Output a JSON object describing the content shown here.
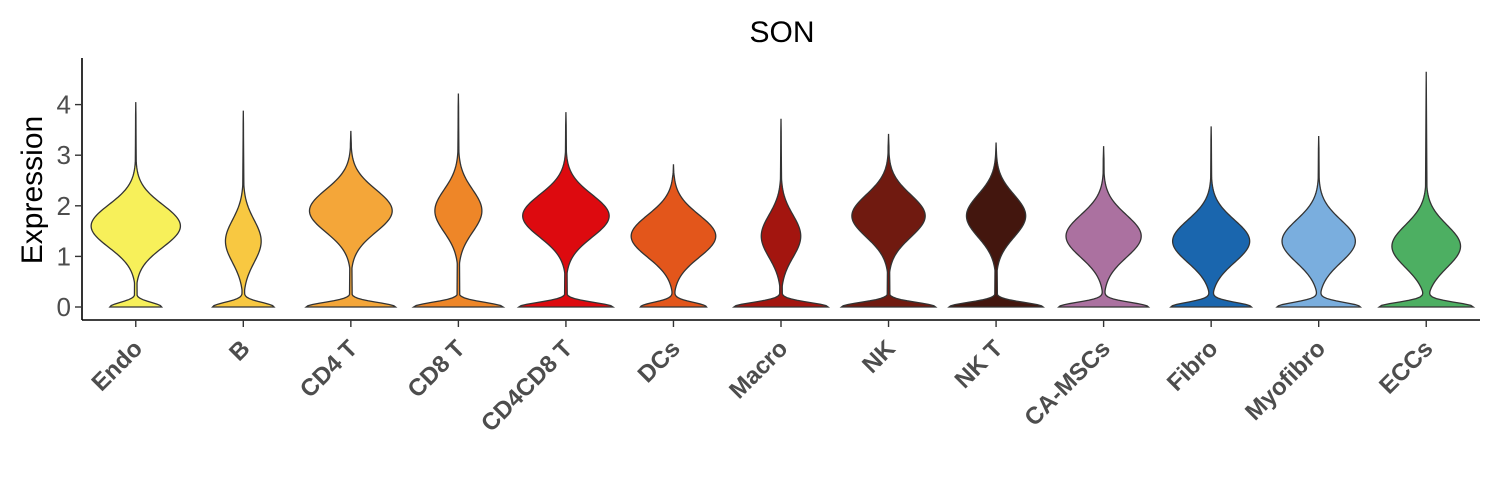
{
  "chart_data": {
    "type": "violin",
    "title": "SON",
    "ylabel": "Expression",
    "xlabel": "",
    "ylim": [
      -0.25,
      4.85
    ],
    "yticks": [
      "0",
      "1",
      "2",
      "3",
      "4"
    ],
    "grid": false,
    "legend": "none",
    "categories": [
      "Endo",
      "B",
      "CD4 T",
      "CD8 T",
      "CD4CD8 T",
      "DCs",
      "Macro",
      "NK",
      "NK T",
      "CA-MSCs",
      "Fibro",
      "Myofibro",
      "ECCs"
    ],
    "colors": [
      "#F7F05A",
      "#F8C841",
      "#F4A639",
      "#EE8628",
      "#DD0A0F",
      "#E3561B",
      "#A3150F",
      "#701A10",
      "#43160E",
      "#AB71A0",
      "#1A66AE",
      "#7AAEDE",
      "#4DAF62"
    ],
    "max_values": [
      4.05,
      3.88,
      3.48,
      4.22,
      3.85,
      2.82,
      3.72,
      3.42,
      3.25,
      3.18,
      3.57,
      3.38,
      4.65
    ],
    "modes": [
      {
        "upper": 1.6,
        "upper_width": 0.95,
        "lower_width": 0.55
      },
      {
        "upper": 1.3,
        "upper_width": 0.38,
        "lower_width": 0.65
      },
      {
        "upper": 1.9,
        "upper_width": 0.88,
        "lower_width": 0.95
      },
      {
        "upper": 1.9,
        "upper_width": 0.5,
        "lower_width": 0.95
      },
      {
        "upper": 1.8,
        "upper_width": 0.92,
        "lower_width": 1.0
      },
      {
        "upper": 1.4,
        "upper_width": 0.9,
        "lower_width": 0.7
      },
      {
        "upper": 1.4,
        "upper_width": 0.42,
        "lower_width": 1.0
      },
      {
        "upper": 1.8,
        "upper_width": 0.78,
        "lower_width": 1.0
      },
      {
        "upper": 1.8,
        "upper_width": 0.63,
        "lower_width": 1.0
      },
      {
        "upper": 1.4,
        "upper_width": 0.8,
        "lower_width": 0.95
      },
      {
        "upper": 1.3,
        "upper_width": 0.82,
        "lower_width": 0.85
      },
      {
        "upper": 1.3,
        "upper_width": 0.78,
        "lower_width": 0.88
      },
      {
        "upper": 1.2,
        "upper_width": 0.73,
        "lower_width": 1.0
      }
    ]
  }
}
